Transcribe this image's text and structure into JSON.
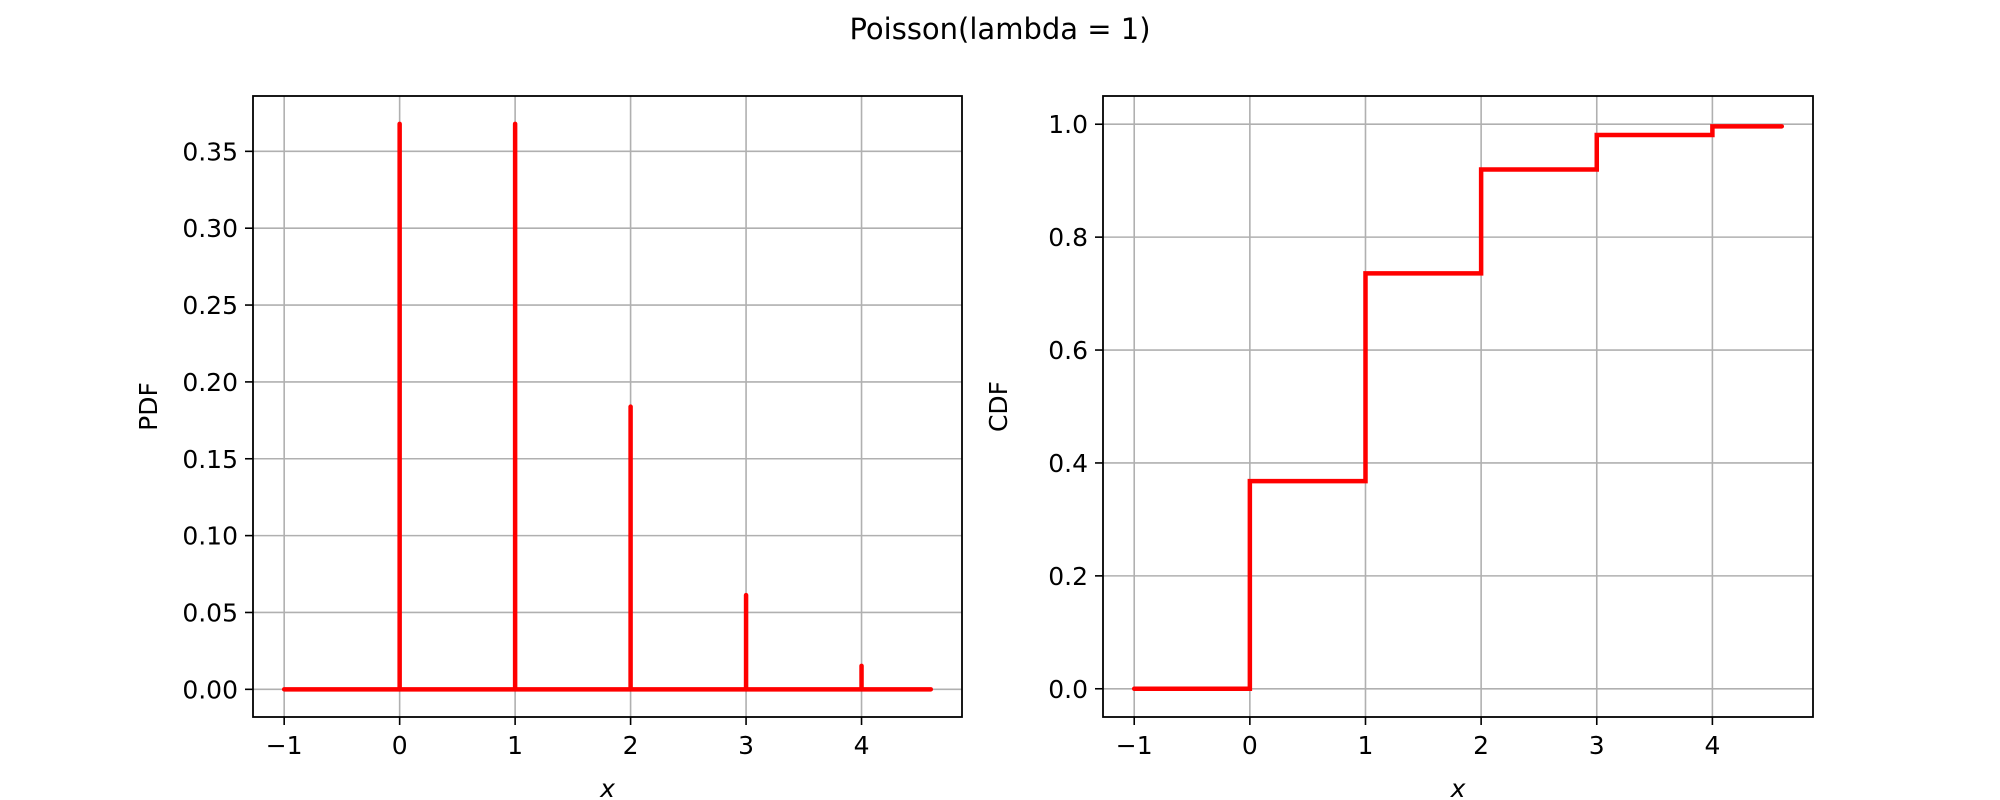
{
  "figure": {
    "title": "Poisson(lambda = 1)"
  },
  "chart_data": [
    {
      "type": "stem",
      "title": "",
      "xlabel": "x",
      "ylabel": "PDF",
      "xlim": [
        -1.27,
        4.87
      ],
      "ylim": [
        -0.018,
        0.386
      ],
      "xticks": [
        -1,
        0,
        1,
        2,
        3,
        4
      ],
      "xtick_labels": [
        "−1",
        "0",
        "1",
        "2",
        "3",
        "4"
      ],
      "yticks": [
        0.0,
        0.05,
        0.1,
        0.15,
        0.2,
        0.25,
        0.3,
        0.35
      ],
      "ytick_labels": [
        "0.00",
        "0.05",
        "0.10",
        "0.15",
        "0.20",
        "0.25",
        "0.30",
        "0.35"
      ],
      "grid": true,
      "color": "#ff0000",
      "baseline": {
        "x_start": -1,
        "x_end": 4.6,
        "y": 0
      },
      "series": [
        {
          "x": [
            0,
            1,
            2,
            3,
            4
          ],
          "y": [
            0.3679,
            0.3679,
            0.1839,
            0.0613,
            0.0153
          ]
        }
      ]
    },
    {
      "type": "step",
      "title": "",
      "xlabel": "x",
      "ylabel": "CDF",
      "xlim": [
        -1.27,
        4.87
      ],
      "ylim": [
        -0.05,
        1.05
      ],
      "xticks": [
        -1,
        0,
        1,
        2,
        3,
        4
      ],
      "xtick_labels": [
        "−1",
        "0",
        "1",
        "2",
        "3",
        "4"
      ],
      "yticks": [
        0.0,
        0.2,
        0.4,
        0.6,
        0.8,
        1.0
      ],
      "ytick_labels": [
        "0.0",
        "0.2",
        "0.4",
        "0.6",
        "0.8",
        "1.0"
      ],
      "grid": true,
      "color": "#ff0000",
      "series": [
        {
          "x": [
            -1,
            0,
            1,
            2,
            3,
            4,
            4.6
          ],
          "y": [
            0,
            0.3679,
            0.7358,
            0.9197,
            0.981,
            0.9963,
            0.9963
          ]
        }
      ]
    }
  ]
}
